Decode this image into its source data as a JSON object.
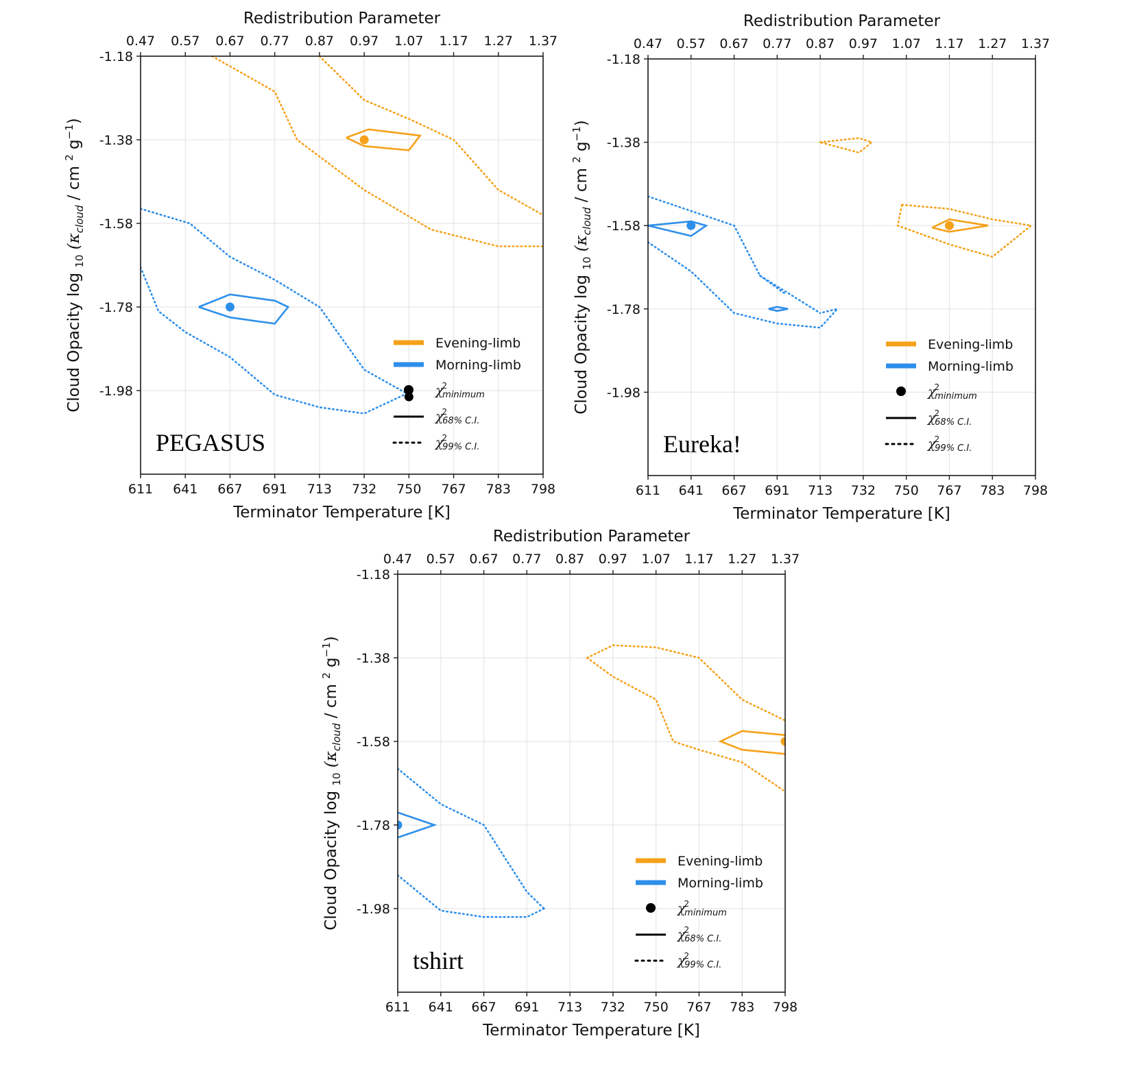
{
  "colors": {
    "evening": "#F5A11A",
    "morning": "#2E8FEA",
    "grid": "#e6e6e6",
    "axis": "#1a1a1a"
  },
  "chart_data": [
    {
      "type": "line",
      "panel_label": "PEGASUS",
      "title_top": "Redistribution Parameter",
      "xlabel": "Terminator Temperature [K]",
      "ylabel_main": "Cloud Opacity log",
      "ylabel_sub": "10",
      "ylabel_kappa": "(κ",
      "ylabel_kappa_sub": "cloud",
      "ylabel_units": "/ cm",
      "ylabel_units_sup": "2",
      "ylabel_units_tail": "g",
      "ylabel_units_tail_sup": "−1",
      "ylabel_close": ")",
      "xticks": [
        "611",
        "641",
        "667",
        "691",
        "713",
        "732",
        "750",
        "767",
        "783",
        "798"
      ],
      "x2ticks": [
        "0.47",
        "0.57",
        "0.67",
        "0.77",
        "0.87",
        "0.97",
        "1.07",
        "1.17",
        "1.27",
        "1.37"
      ],
      "yticks": [
        "-1.18",
        "-1.38",
        "-1.58",
        "-1.78",
        "-1.98"
      ],
      "xlim": [
        0,
        9
      ],
      "ylim": [
        -2.18,
        -1.18
      ],
      "legend": {
        "evening": "Evening-limb",
        "morning": "Morning-limb",
        "chi": "χ",
        "chi_sup": "2",
        "min_sub": "minimum",
        "ci68_sub": "68% C.I.",
        "ci99_sub": "99% C.I."
      },
      "series": [
        {
          "name": "Evening-limb 99% C.I. upper",
          "limb": "evening",
          "style": "dotted",
          "points": [
            [
              1.6,
              -1.18
            ],
            [
              3.0,
              -1.265
            ],
            [
              3.5,
              -1.38
            ],
            [
              5.0,
              -1.5
            ],
            [
              6.5,
              -1.595
            ],
            [
              8.0,
              -1.635
            ],
            [
              9.0,
              -1.635
            ]
          ]
        },
        {
          "name": "Evening-limb 99% C.I. lower",
          "limb": "evening",
          "style": "dotted",
          "points": [
            [
              4.0,
              -1.18
            ],
            [
              5.0,
              -1.285
            ],
            [
              6.0,
              -1.33
            ],
            [
              7.0,
              -1.38
            ],
            [
              8.0,
              -1.5
            ],
            [
              9.0,
              -1.56
            ]
          ]
        },
        {
          "name": "Evening-limb 68% C.I.",
          "limb": "evening",
          "style": "solid",
          "points": [
            [
              4.6,
              -1.375
            ],
            [
              5.1,
              -1.355
            ],
            [
              6.25,
              -1.37
            ],
            [
              6.0,
              -1.405
            ],
            [
              5.0,
              -1.395
            ],
            [
              4.6,
              -1.375
            ]
          ]
        },
        {
          "name": "Evening-limb minimum",
          "limb": "evening",
          "style": "marker",
          "points": [
            [
              5.0,
              -1.38
            ]
          ]
        },
        {
          "name": "Morning-limb 99% C.I. upper",
          "limb": "morning",
          "style": "dotted",
          "points": [
            [
              0,
              -1.545
            ],
            [
              1.1,
              -1.58
            ],
            [
              2.0,
              -1.66
            ],
            [
              3.0,
              -1.715
            ],
            [
              4.0,
              -1.78
            ],
            [
              5.0,
              -1.93
            ],
            [
              6.0,
              -1.99
            ]
          ]
        },
        {
          "name": "Morning-limb 99% C.I. lower",
          "limb": "morning",
          "style": "dotted",
          "points": [
            [
              0,
              -1.685
            ],
            [
              0.4,
              -1.79
            ],
            [
              1.0,
              -1.84
            ],
            [
              2.0,
              -1.9
            ],
            [
              3.0,
              -1.99
            ],
            [
              4.0,
              -2.02
            ],
            [
              5.0,
              -2.035
            ],
            [
              6.0,
              -1.985
            ]
          ]
        },
        {
          "name": "Morning-limb 68% C.I.",
          "limb": "morning",
          "style": "solid",
          "points": [
            [
              1.3,
              -1.78
            ],
            [
              2.0,
              -1.75
            ],
            [
              3.0,
              -1.765
            ],
            [
              3.3,
              -1.78
            ],
            [
              3.0,
              -1.82
            ],
            [
              2.0,
              -1.805
            ],
            [
              1.3,
              -1.78
            ]
          ]
        },
        {
          "name": "Morning-limb minimum",
          "limb": "morning",
          "style": "marker",
          "points": [
            [
              2.0,
              -1.78
            ]
          ]
        },
        {
          "name": "Overall minimum",
          "limb": "black",
          "style": "marker",
          "points": [
            [
              6.0,
              -1.995
            ]
          ]
        }
      ]
    },
    {
      "type": "line",
      "panel_label": "Eureka!",
      "title_top": "Redistribution Parameter",
      "xlabel": "Terminator Temperature [K]",
      "ylabel_main": "Cloud Opacity log",
      "ylabel_sub": "10",
      "ylabel_kappa": "(κ",
      "ylabel_kappa_sub": "cloud",
      "ylabel_units": "/ cm",
      "ylabel_units_sup": "2",
      "ylabel_units_tail": "g",
      "ylabel_units_tail_sup": "−1",
      "ylabel_close": ")",
      "xticks": [
        "611",
        "641",
        "667",
        "691",
        "713",
        "732",
        "750",
        "767",
        "783",
        "798"
      ],
      "x2ticks": [
        "0.47",
        "0.57",
        "0.67",
        "0.77",
        "0.87",
        "0.97",
        "1.07",
        "1.17",
        "1.27",
        "1.37"
      ],
      "yticks": [
        "-1.18",
        "-1.38",
        "-1.58",
        "-1.78",
        "-1.98"
      ],
      "xlim": [
        0,
        9
      ],
      "ylim": [
        -2.18,
        -1.18
      ],
      "legend": {
        "evening": "Evening-limb",
        "morning": "Morning-limb",
        "chi": "χ",
        "chi_sup": "2",
        "min_sub": "minimum",
        "ci68_sub": "68% C.I.",
        "ci99_sub": "99% C.I."
      },
      "series": [
        {
          "name": "Evening-limb 99% C.I. small",
          "limb": "evening",
          "style": "dotted",
          "points": [
            [
              4.0,
              -1.38
            ],
            [
              4.9,
              -1.37
            ],
            [
              5.2,
              -1.38
            ],
            [
              4.9,
              -1.405
            ],
            [
              4.0,
              -1.38
            ]
          ]
        },
        {
          "name": "Evening-limb 99% C.I. right",
          "limb": "evening",
          "style": "dotted",
          "points": [
            [
              5.9,
              -1.53
            ],
            [
              7.0,
              -1.54
            ],
            [
              8.0,
              -1.565
            ],
            [
              8.9,
              -1.58
            ],
            [
              8.0,
              -1.655
            ],
            [
              7.0,
              -1.625
            ],
            [
              5.8,
              -1.58
            ],
            [
              5.9,
              -1.53
            ]
          ]
        },
        {
          "name": "Evening-limb 68% C.I.",
          "limb": "evening",
          "style": "solid",
          "points": [
            [
              6.6,
              -1.585
            ],
            [
              7.0,
              -1.565
            ],
            [
              7.9,
              -1.58
            ],
            [
              7.0,
              -1.595
            ],
            [
              6.6,
              -1.585
            ]
          ]
        },
        {
          "name": "Evening-limb minimum",
          "limb": "evening",
          "style": "marker",
          "points": [
            [
              7.0,
              -1.58
            ]
          ]
        },
        {
          "name": "Morning-limb 99% C.I. upper",
          "limb": "morning",
          "style": "dotted",
          "points": [
            [
              0,
              -1.51
            ],
            [
              2.0,
              -1.58
            ],
            [
              2.6,
              -1.7
            ],
            [
              4.0,
              -1.79
            ]
          ]
        },
        {
          "name": "Morning-limb 99% C.I. lower",
          "limb": "morning",
          "style": "dotted",
          "points": [
            [
              0,
              -1.62
            ],
            [
              1.0,
              -1.69
            ],
            [
              2.0,
              -1.79
            ],
            [
              3.0,
              -1.815
            ],
            [
              4.0,
              -1.825
            ],
            [
              4.4,
              -1.78
            ],
            [
              4.0,
              -1.79
            ]
          ]
        },
        {
          "name": "Morning-limb 99% C.I. island",
          "limb": "morning",
          "style": "dotted",
          "points": [
            [
              2.6,
              -1.7
            ],
            [
              3.2,
              -1.745
            ]
          ]
        },
        {
          "name": "Morning-limb 68% C.I.",
          "limb": "morning",
          "style": "solid",
          "points": [
            [
              0,
              -1.58
            ],
            [
              1.0,
              -1.57
            ],
            [
              1.35,
              -1.58
            ],
            [
              1.0,
              -1.605
            ],
            [
              0,
              -1.58
            ]
          ]
        },
        {
          "name": "Morning-limb 68% C.I. small",
          "limb": "morning",
          "style": "solid",
          "points": [
            [
              2.8,
              -1.78
            ],
            [
              3.0,
              -1.775
            ],
            [
              3.25,
              -1.78
            ],
            [
              3.0,
              -1.785
            ],
            [
              2.8,
              -1.78
            ]
          ]
        },
        {
          "name": "Morning-limb minimum",
          "limb": "morning",
          "style": "marker",
          "points": [
            [
              1.0,
              -1.58
            ]
          ]
        }
      ]
    },
    {
      "type": "line",
      "panel_label": "tshirt",
      "title_top": "Redistribution Parameter",
      "xlabel": "Terminator Temperature [K]",
      "ylabel_main": "Cloud Opacity log",
      "ylabel_sub": "10",
      "ylabel_kappa": "(κ",
      "ylabel_kappa_sub": "cloud",
      "ylabel_units": "/ cm",
      "ylabel_units_sup": "2",
      "ylabel_units_tail": "g",
      "ylabel_units_tail_sup": "−1",
      "ylabel_close": ")",
      "xticks": [
        "611",
        "641",
        "667",
        "691",
        "713",
        "732",
        "750",
        "767",
        "783",
        "798"
      ],
      "x2ticks": [
        "0.47",
        "0.57",
        "0.67",
        "0.77",
        "0.87",
        "0.97",
        "1.07",
        "1.17",
        "1.27",
        "1.37"
      ],
      "yticks": [
        "-1.18",
        "-1.38",
        "-1.58",
        "-1.78",
        "-1.98"
      ],
      "xlim": [
        0,
        9
      ],
      "ylim": [
        -2.18,
        -1.18
      ],
      "legend": {
        "evening": "Evening-limb",
        "morning": "Morning-limb",
        "chi": "χ",
        "chi_sup": "2",
        "min_sub": "minimum",
        "ci68_sub": "68% C.I.",
        "ci99_sub": "99% C.I."
      },
      "series": [
        {
          "name": "Evening-limb 99% C.I. upper",
          "limb": "evening",
          "style": "dotted",
          "points": [
            [
              4.4,
              -1.38
            ],
            [
              5.0,
              -1.35
            ],
            [
              6.0,
              -1.355
            ],
            [
              7.0,
              -1.38
            ],
            [
              8.0,
              -1.48
            ],
            [
              9.0,
              -1.53
            ]
          ]
        },
        {
          "name": "Evening-limb 99% C.I. lower",
          "limb": "evening",
          "style": "dotted",
          "points": [
            [
              4.4,
              -1.38
            ],
            [
              5.0,
              -1.425
            ],
            [
              6.0,
              -1.48
            ],
            [
              6.4,
              -1.58
            ],
            [
              7.0,
              -1.6
            ],
            [
              8.0,
              -1.63
            ],
            [
              9.0,
              -1.7
            ]
          ]
        },
        {
          "name": "Evening-limb 68% C.I.",
          "limb": "evening",
          "style": "solid",
          "points": [
            [
              9.0,
              -1.565
            ],
            [
              8.0,
              -1.555
            ],
            [
              7.5,
              -1.58
            ],
            [
              8.0,
              -1.6
            ],
            [
              9.0,
              -1.61
            ]
          ]
        },
        {
          "name": "Evening-limb minimum",
          "limb": "evening",
          "style": "marker",
          "points": [
            [
              9.0,
              -1.58
            ]
          ]
        },
        {
          "name": "Morning-limb 99% C.I. upper",
          "limb": "morning",
          "style": "dotted",
          "points": [
            [
              0,
              -1.645
            ],
            [
              1.0,
              -1.73
            ],
            [
              2.0,
              -1.78
            ],
            [
              3.0,
              -1.94
            ],
            [
              3.4,
              -1.98
            ]
          ]
        },
        {
          "name": "Morning-limb 99% C.I. lower",
          "limb": "morning",
          "style": "dotted",
          "points": [
            [
              0,
              -1.9
            ],
            [
              1.0,
              -1.985
            ],
            [
              2.0,
              -2.0
            ],
            [
              3.0,
              -2.0
            ],
            [
              3.4,
              -1.98
            ]
          ]
        },
        {
          "name": "Morning-limb 68% C.I.",
          "limb": "morning",
          "style": "solid",
          "points": [
            [
              0,
              -1.75
            ],
            [
              0.85,
              -1.78
            ],
            [
              0,
              -1.81
            ]
          ]
        },
        {
          "name": "Morning-limb minimum",
          "limb": "morning",
          "style": "marker",
          "points": [
            [
              0,
              -1.78
            ]
          ]
        }
      ]
    }
  ]
}
